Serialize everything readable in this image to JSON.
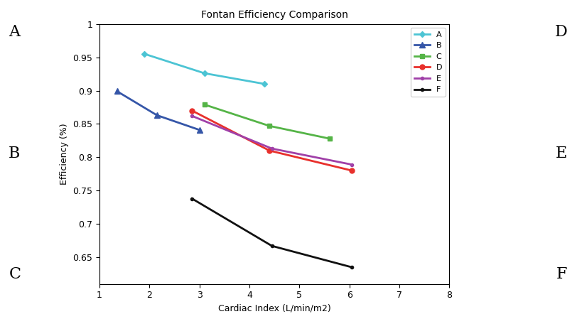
{
  "chart_data": {
    "type": "line",
    "title": "Fontan Efficiency Comparison",
    "x_label": "Cardiac Index (L/min/m2)",
    "y_label": "Efficiency (%)",
    "series": [
      {
        "name": "A",
        "color": "#4cc4d4",
        "marker": "diamond",
        "x": [
          1.9,
          3.1,
          4.3
        ],
        "values": [
          0.955,
          0.926,
          0.91
        ]
      },
      {
        "name": "B",
        "color": "#3556a8",
        "marker": "triangle",
        "x": [
          1.35,
          2.15,
          3.0
        ],
        "values": [
          0.899,
          0.863,
          0.841
        ]
      },
      {
        "name": "C",
        "color": "#55b447",
        "marker": "square",
        "x": [
          3.1,
          4.4,
          5.6
        ],
        "values": [
          0.879,
          0.847,
          0.828
        ]
      },
      {
        "name": "D",
        "color": "#e8302c",
        "marker": "circle",
        "x": [
          2.85,
          4.4,
          6.05
        ],
        "values": [
          0.87,
          0.81,
          0.78
        ]
      },
      {
        "name": "E",
        "color": "#a040a8",
        "marker": "dot",
        "x": [
          2.85,
          4.45,
          6.05
        ],
        "values": [
          0.862,
          0.813,
          0.789
        ]
      },
      {
        "name": "F",
        "color": "#111111",
        "marker": "dot",
        "x": [
          2.85,
          4.45,
          6.05
        ],
        "values": [
          0.738,
          0.667,
          0.635
        ]
      }
    ],
    "xlim": [
      1,
      8
    ],
    "xticks": [
      1,
      2,
      3,
      4,
      5,
      6,
      7,
      8
    ],
    "ylim": [
      0.61,
      1
    ],
    "yticks": [
      0.65,
      0.7,
      0.75,
      0.8,
      0.85,
      0.9,
      0.95,
      1
    ],
    "grid": false,
    "legend": "upper right",
    "annotations": [
      "A",
      "B",
      "C",
      "D",
      "E",
      "F"
    ]
  }
}
